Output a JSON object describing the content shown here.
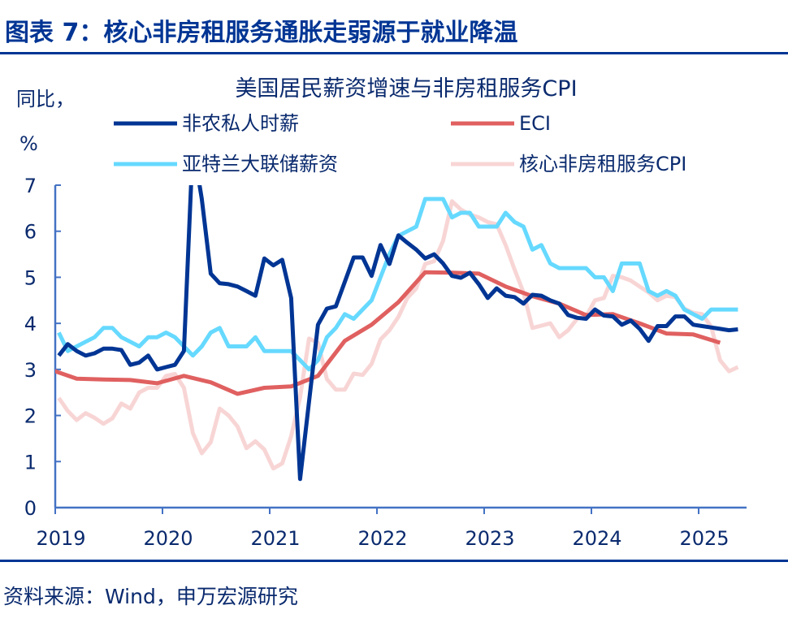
{
  "header": {
    "title": "图表 7：核心非房租服务通胀走弱源于就业降温"
  },
  "footer": {
    "source": "资料来源：Wind，申万宏源研究"
  },
  "colors": {
    "accent": "#003594",
    "axis": "#4472c4"
  },
  "chart_data": {
    "type": "line",
    "title": "美国居民薪资增速与非房租服务CPI",
    "ylabel_line1": "同比，",
    "ylabel_line2": "%",
    "ylim": [
      0,
      7
    ],
    "yticks": [
      "0",
      "1",
      "2",
      "3",
      "4",
      "5",
      "6",
      "7"
    ],
    "xlim": [
      "2019-01",
      "2025-05"
    ],
    "xticks": [
      "2019",
      "2020",
      "2021",
      "2022",
      "2023",
      "2024",
      "2025"
    ],
    "grid": false,
    "legend": "top",
    "series": [
      {
        "name": "非农私人时薪",
        "color": "#003594",
        "start": "2019-01",
        "step_months": 1,
        "values": [
          3.3,
          3.55,
          3.4,
          3.3,
          3.35,
          3.45,
          3.45,
          3.42,
          3.1,
          3.15,
          3.3,
          3.0,
          3.05,
          3.1,
          3.4,
          7.9,
          6.7,
          5.08,
          4.87,
          4.85,
          4.8,
          4.7,
          4.6,
          5.41,
          5.26,
          5.38,
          4.55,
          0.62,
          2.3,
          3.97,
          4.32,
          4.37,
          4.9,
          5.43,
          5.43,
          5.03,
          5.7,
          5.29,
          5.91,
          5.75,
          5.6,
          5.41,
          5.5,
          5.3,
          5.03,
          4.99,
          5.1,
          4.85,
          4.55,
          4.76,
          4.6,
          4.57,
          4.43,
          4.62,
          4.6,
          4.5,
          4.43,
          4.18,
          4.12,
          4.1,
          4.3,
          4.17,
          4.15,
          3.97,
          4.06,
          3.88,
          3.62,
          3.94,
          3.94,
          4.15,
          4.15,
          3.97,
          3.94,
          3.91,
          3.88,
          3.85,
          3.87
        ]
      },
      {
        "name": "ECI",
        "color": "#e06060",
        "start": "2018-12",
        "step_months": 3,
        "values": [
          3.0,
          2.8,
          2.78,
          2.77,
          2.7,
          2.86,
          2.72,
          2.47,
          2.6,
          2.63,
          2.86,
          3.62,
          3.97,
          4.46,
          5.11,
          5.1,
          5.08,
          4.8,
          4.59,
          4.43,
          4.18,
          4.2,
          4.0,
          3.78,
          3.76,
          3.58
        ]
      },
      {
        "name": "亚特兰大联储薪资",
        "color": "#66d9ff",
        "start": "2019-01",
        "step_months": 1,
        "values": [
          3.8,
          3.4,
          3.5,
          3.6,
          3.7,
          3.9,
          3.9,
          3.7,
          3.6,
          3.5,
          3.7,
          3.7,
          3.8,
          3.7,
          3.5,
          3.3,
          3.5,
          3.8,
          3.9,
          3.5,
          3.5,
          3.5,
          3.7,
          3.4,
          3.4,
          3.4,
          3.4,
          3.2,
          3.0,
          3.2,
          3.7,
          3.9,
          4.2,
          4.1,
          4.3,
          4.5,
          5.0,
          5.5,
          5.9,
          6.0,
          6.1,
          6.7,
          6.7,
          6.7,
          6.3,
          6.4,
          6.4,
          6.1,
          6.1,
          6.1,
          6.4,
          6.2,
          6.1,
          5.6,
          5.7,
          5.3,
          5.2,
          5.2,
          5.2,
          5.2,
          5.0,
          5.0,
          4.7,
          5.3,
          5.3,
          5.3,
          4.7,
          4.6,
          4.7,
          4.6,
          4.3,
          4.2,
          4.1,
          4.3,
          4.3,
          4.3,
          4.3
        ]
      },
      {
        "name": "核心非房租服务CPI",
        "color": "#f8d5d5",
        "start": "2019-01",
        "step_months": 1,
        "values": [
          2.38,
          2.1,
          1.9,
          2.05,
          1.95,
          1.82,
          1.94,
          2.26,
          2.15,
          2.5,
          2.6,
          2.6,
          2.86,
          2.9,
          2.6,
          1.62,
          1.18,
          1.42,
          2.15,
          2.0,
          1.76,
          1.29,
          1.44,
          1.26,
          0.85,
          0.96,
          1.55,
          2.4,
          3.67,
          3.58,
          2.79,
          2.56,
          2.56,
          2.91,
          2.88,
          3.12,
          3.65,
          3.85,
          4.14,
          4.55,
          4.76,
          5.29,
          5.35,
          5.79,
          6.65,
          6.47,
          6.36,
          6.3,
          6.2,
          6.15,
          5.7,
          5.17,
          4.67,
          3.9,
          3.95,
          4.0,
          3.7,
          3.85,
          4.1,
          4.15,
          4.5,
          4.55,
          5.03,
          5.0,
          4.93,
          4.8,
          4.67,
          4.5,
          4.6,
          4.57,
          4.32,
          4.23,
          4.2,
          3.93,
          3.2,
          2.96,
          3.05
        ]
      }
    ]
  }
}
